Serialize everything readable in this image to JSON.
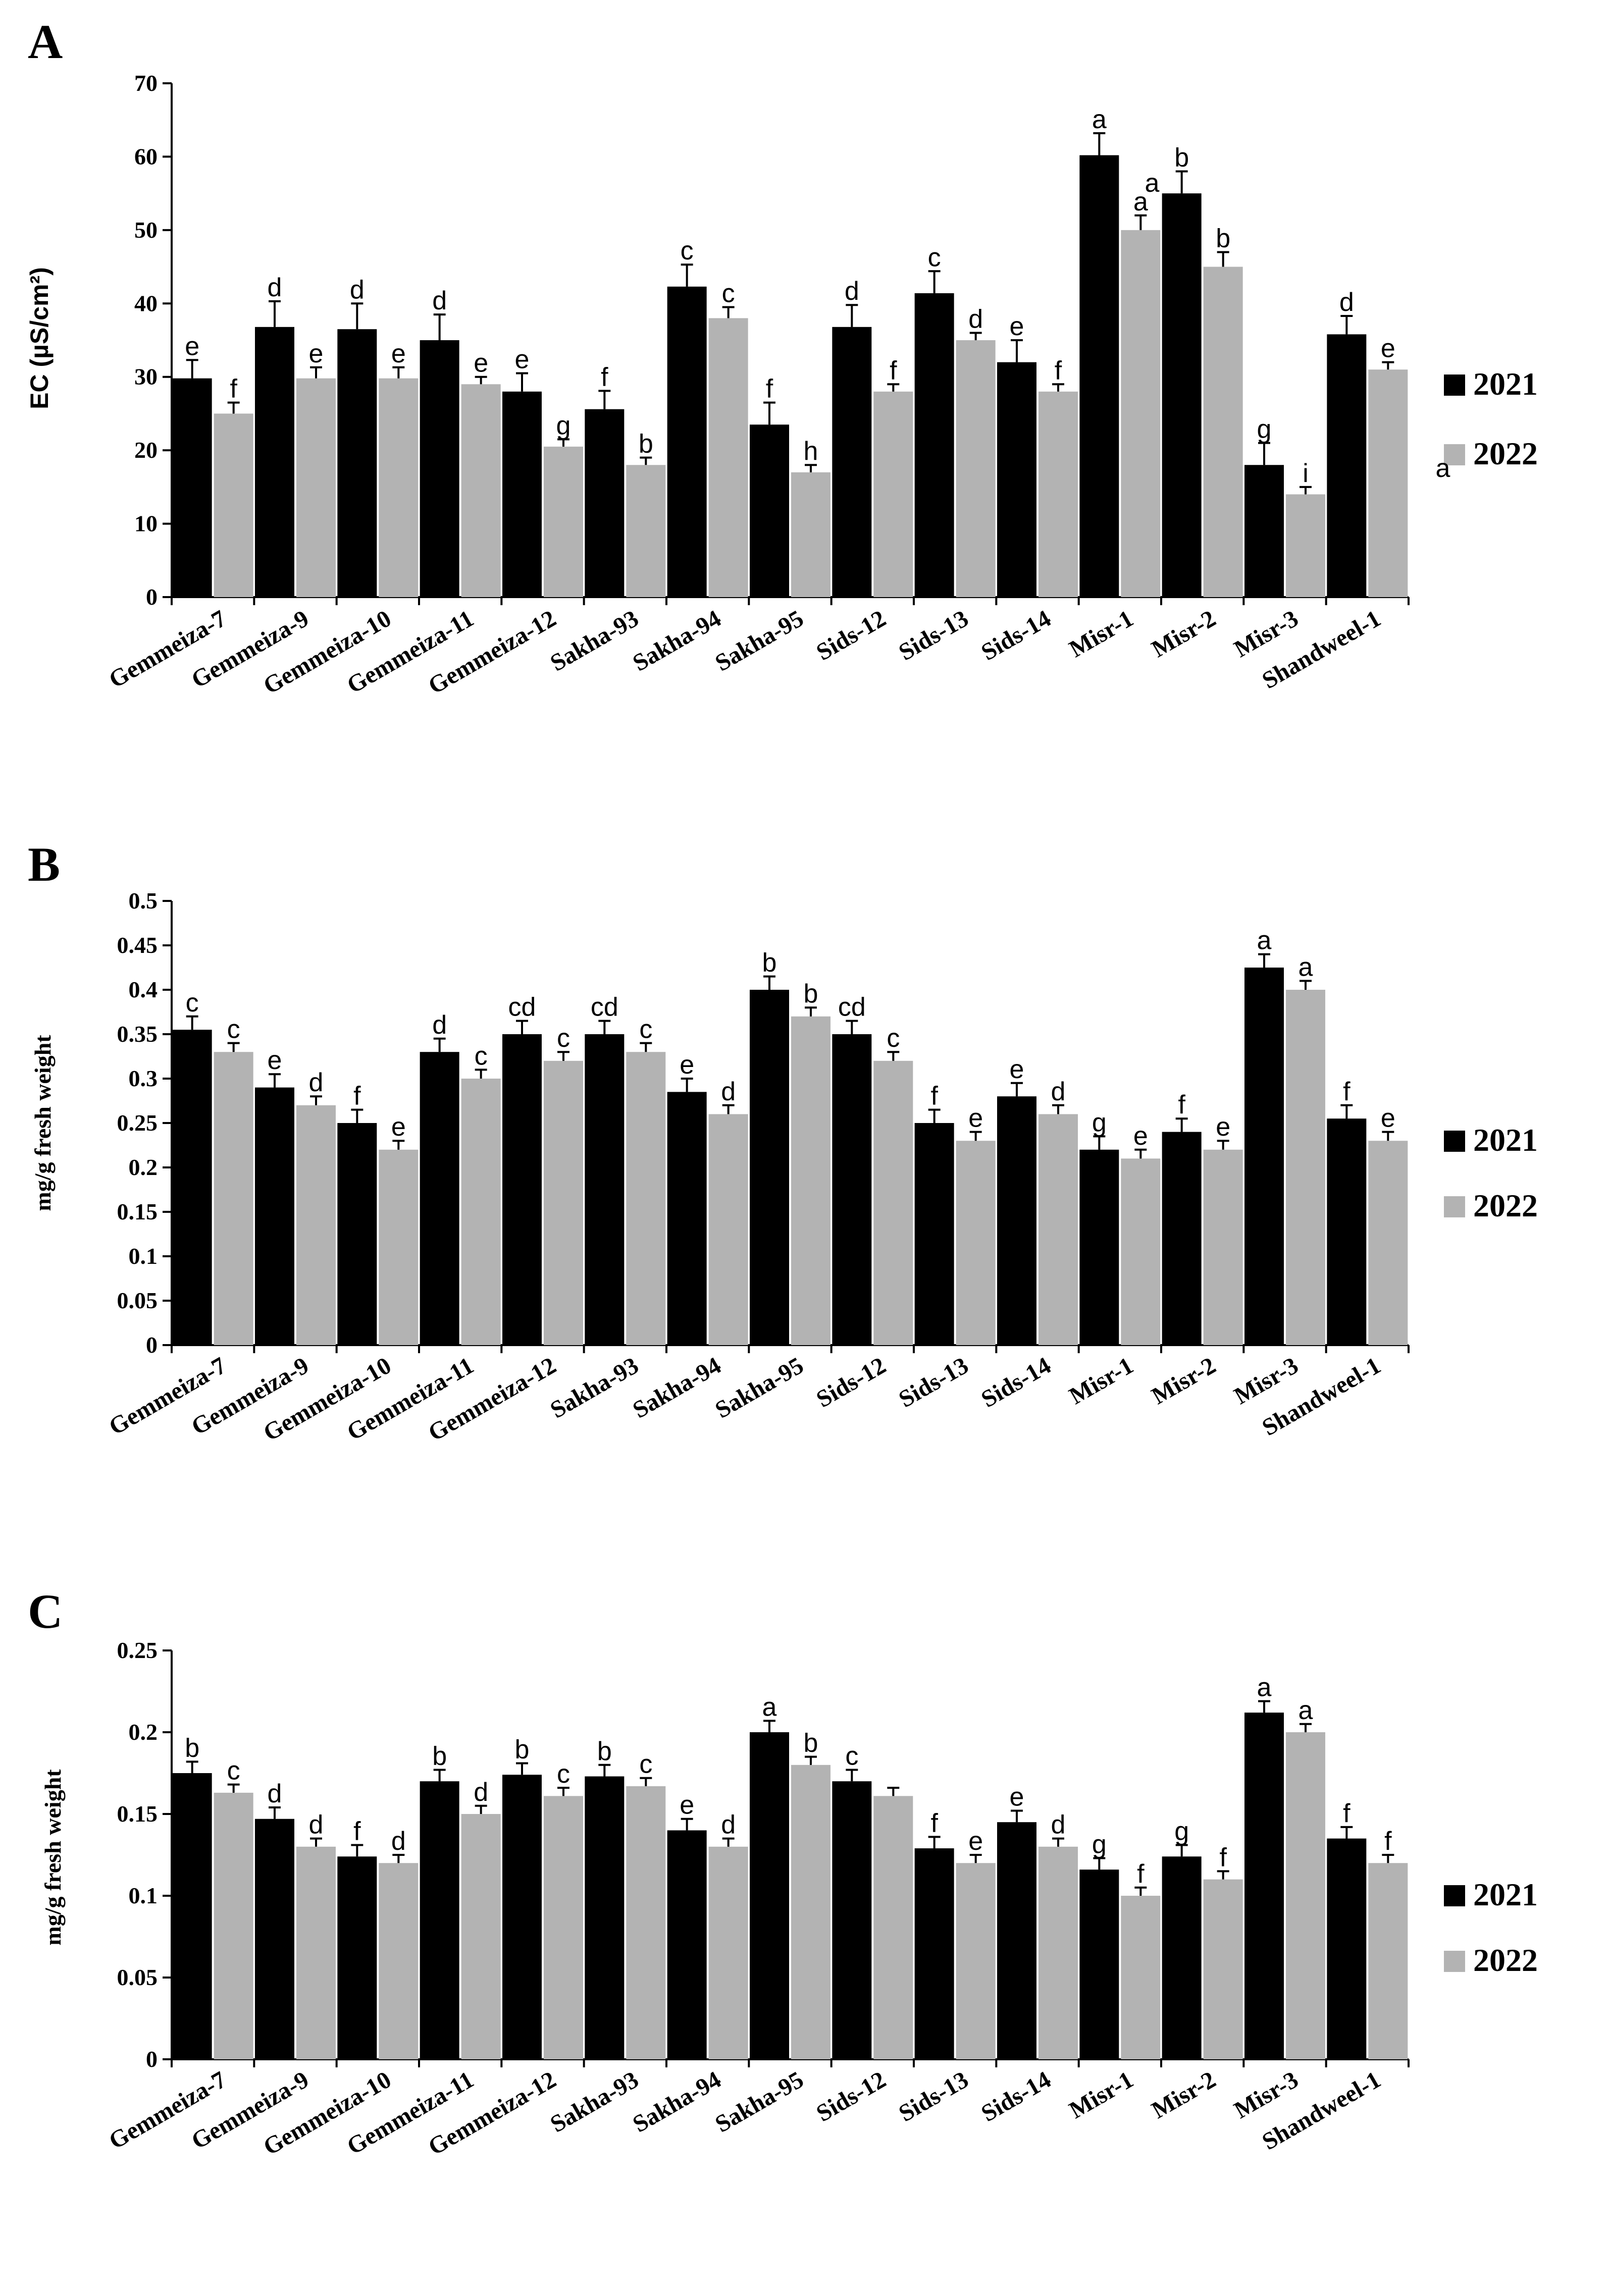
{
  "colors": {
    "series_2021": "#000000",
    "series_2022": "#b3b3b3",
    "axis": "#000000",
    "background": "#ffffff"
  },
  "chart_data": [
    {
      "panel": "A",
      "type": "bar",
      "title": "",
      "ylabel": "EC (µS/cm²)",
      "xlabel": "",
      "ylim": [
        0,
        70
      ],
      "yticks": [
        0,
        10,
        20,
        30,
        40,
        50,
        60,
        70
      ],
      "ytick_labels": [
        "0",
        "10",
        "20",
        "30",
        "40",
        "50",
        "60",
        "70"
      ],
      "grid": false,
      "legend": "right",
      "categories": [
        "Gemmeiza-7",
        "Gemmeiza-9",
        "Gemmeiza-10",
        "Gemmeiza-11",
        "Gemmeiza-12",
        "Sakha-93",
        "Sakha-94",
        "Sakha-95",
        "Sids-12",
        "Sids-13",
        "Sids-14",
        "Misr-1",
        "Misr-2",
        "Misr-3",
        "Shandweel-1"
      ],
      "series": [
        {
          "name": "2021",
          "values": [
            29.8,
            36.8,
            36.5,
            35,
            28,
            25.6,
            42.3,
            23.5,
            36.8,
            41.4,
            32,
            60.2,
            55,
            18,
            35.8
          ],
          "errors": [
            2.5,
            3.5,
            3.5,
            3.5,
            2.5,
            2.5,
            3,
            3,
            3,
            3,
            3,
            3,
            3,
            3,
            2.5
          ],
          "letters": [
            "e",
            "d",
            "d",
            "d",
            "e",
            "f",
            "c",
            "f",
            "d",
            "c",
            "e",
            "a",
            "b",
            "g",
            "d"
          ]
        },
        {
          "name": "2022",
          "values": [
            25,
            29.8,
            29.8,
            29,
            20.5,
            18,
            38,
            17,
            28,
            35,
            28,
            50,
            45,
            14,
            31
          ],
          "errors": [
            1.5,
            1.5,
            1.5,
            1,
            1,
            1,
            1.5,
            1,
            1,
            1,
            1,
            2,
            2,
            1,
            1
          ],
          "letters": [
            "f",
            "e",
            "e",
            "e",
            "g",
            "b",
            "c",
            "h",
            "f",
            "d",
            "f",
            "a",
            "b",
            "i",
            "e"
          ]
        }
      ],
      "annotations": [
        "a",
        "a"
      ]
    },
    {
      "panel": "B",
      "type": "bar",
      "title": "",
      "ylabel": "mg/g fresh weight",
      "xlabel": "",
      "ylim": [
        0,
        0.5
      ],
      "yticks": [
        0,
        0.05,
        0.1,
        0.15,
        0.2,
        0.25,
        0.3,
        0.35,
        0.4,
        0.45,
        0.5
      ],
      "ytick_labels": [
        "0",
        "0.05",
        "0.1",
        "0.15",
        "0.2",
        "0.25",
        "0.3",
        "0.35",
        "0.4",
        "0.45",
        "0.5"
      ],
      "grid": false,
      "legend": "right",
      "categories": [
        "Gemmeiza-7",
        "Gemmeiza-9",
        "Gemmeiza-10",
        "Gemmeiza-11",
        "Gemmeiza-12",
        "Sakha-93",
        "Sakha-94",
        "Sakha-95",
        "Sids-12",
        "Sids-13",
        "Sids-14",
        "Misr-1",
        "Misr-2",
        "Misr-3",
        "Shandweel-1"
      ],
      "series": [
        {
          "name": "2021",
          "values": [
            0.355,
            0.29,
            0.25,
            0.33,
            0.35,
            0.35,
            0.285,
            0.4,
            0.35,
            0.25,
            0.28,
            0.22,
            0.24,
            0.425,
            0.255
          ],
          "errors": [
            0.015,
            0.015,
            0.015,
            0.015,
            0.015,
            0.015,
            0.015,
            0.015,
            0.015,
            0.015,
            0.015,
            0.015,
            0.015,
            0.015,
            0.015
          ],
          "letters": [
            "c",
            "e",
            "f",
            "d",
            "cd",
            "cd",
            "e",
            "b",
            "cd",
            "f",
            "e",
            "g",
            "f",
            "a",
            "f"
          ]
        },
        {
          "name": "2022",
          "values": [
            0.33,
            0.27,
            0.22,
            0.3,
            0.32,
            0.33,
            0.26,
            0.37,
            0.32,
            0.23,
            0.26,
            0.21,
            0.22,
            0.4,
            0.23
          ],
          "errors": [
            0.01,
            0.01,
            0.01,
            0.01,
            0.01,
            0.01,
            0.01,
            0.01,
            0.01,
            0.01,
            0.01,
            0.01,
            0.01,
            0.01,
            0.01
          ],
          "letters": [
            "c",
            "d",
            "e",
            "c",
            "c",
            "c",
            "d",
            "b",
            "c",
            "e",
            "d",
            "e",
            "e",
            "a",
            "e"
          ]
        }
      ]
    },
    {
      "panel": "C",
      "type": "bar",
      "title": "",
      "ylabel": "mg/g fresh weight",
      "xlabel": "",
      "ylim": [
        0,
        0.25
      ],
      "yticks": [
        0,
        0.05,
        0.1,
        0.15,
        0.2,
        0.25
      ],
      "ytick_labels": [
        "0",
        "0.05",
        "0.1",
        "0.15",
        "0.2",
        "0.25"
      ],
      "grid": false,
      "legend": "right",
      "categories": [
        "Gemmeiza-7",
        "Gemmeiza-9",
        "Gemmeiza-10",
        "Gemmeiza-11",
        "Gemmeiza-12",
        "Sakha-93",
        "Sakha-94",
        "Sakha-95",
        "Sids-12",
        "Sids-13",
        "Sids-14",
        "Misr-1",
        "Misr-2",
        "Misr-3",
        "Shandweel-1"
      ],
      "series": [
        {
          "name": "2021",
          "values": [
            0.175,
            0.147,
            0.124,
            0.17,
            0.174,
            0.173,
            0.14,
            0.2,
            0.17,
            0.129,
            0.145,
            0.116,
            0.124,
            0.212,
            0.135
          ],
          "errors": [
            0.007,
            0.007,
            0.007,
            0.007,
            0.007,
            0.007,
            0.007,
            0.007,
            0.007,
            0.007,
            0.007,
            0.007,
            0.007,
            0.007,
            0.007
          ],
          "letters": [
            "b",
            "d",
            "f",
            "b",
            "b",
            "b",
            "e",
            "a",
            "c",
            "f",
            "e",
            "g",
            "g",
            "a",
            "f"
          ]
        },
        {
          "name": "2022",
          "values": [
            0.163,
            0.13,
            0.12,
            0.15,
            0.161,
            0.167,
            0.13,
            0.18,
            0.161,
            0.12,
            0.13,
            0.1,
            0.11,
            0.2,
            0.12
          ],
          "errors": [
            0.005,
            0.005,
            0.005,
            0.005,
            0.005,
            0.005,
            0.005,
            0.005,
            0.005,
            0.005,
            0.005,
            0.005,
            0.005,
            0.005,
            0.005
          ],
          "letters": [
            "c",
            "d",
            "d",
            "d",
            "c",
            "c",
            "d",
            "b",
            "",
            "e",
            "d",
            "f",
            "f",
            "a",
            "f"
          ]
        }
      ]
    }
  ]
}
